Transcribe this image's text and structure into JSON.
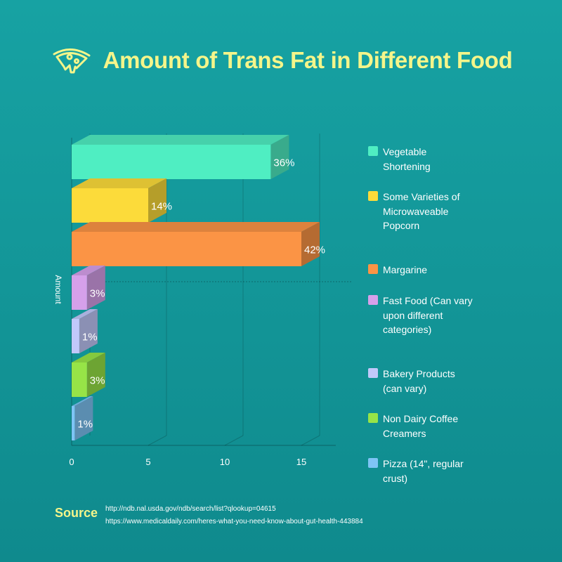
{
  "title": "Amount of Trans Fat in Different Food",
  "colors": {
    "title": "#f4f58a",
    "background": "#129698"
  },
  "chart_data": {
    "type": "bar",
    "orientation": "horizontal",
    "three_d": true,
    "categories": [
      "Vegetable Shortening",
      "Some Varieties of Microwaveable Popcorn",
      "Margarine",
      "Fast Food (Can vary upon different categories)",
      "Bakery Products (can vary)",
      "Non Dairy Coffee Creamers",
      "Pizza (14\", regular crust)"
    ],
    "values": [
      13,
      5,
      15,
      1,
      0.5,
      1,
      0.2
    ],
    "data_labels": [
      "36%",
      "14%",
      "42%",
      "3%",
      "1%",
      "3%",
      "1%"
    ],
    "colors": [
      "#4feec2",
      "#fcdb3a",
      "#fb9445",
      "#d6a0ea",
      "#c1c8fa",
      "#97e447",
      "#7ec4f5"
    ],
    "xlim": [
      0,
      15
    ],
    "xticks": [
      "0",
      "5",
      "10",
      "15"
    ],
    "ylabel": "Amount",
    "legend": "right",
    "grid": true
  },
  "legend_items": [
    {
      "label": "Vegetable Shortening",
      "color": "#4feec2"
    },
    {
      "label": "Some Varieties of Microwaveable Popcorn",
      "color": "#fcdb3a"
    },
    {
      "label": "Margarine",
      "color": "#fb9445"
    },
    {
      "label": "Fast Food (Can vary upon different categories)",
      "color": "#d6a0ea"
    },
    {
      "label": "Bakery Products (can vary)",
      "color": "#c1c8fa"
    },
    {
      "label": "Non Dairy Coffee Creamers",
      "color": "#97e447"
    },
    {
      "label": "Pizza (14\", regular crust)",
      "color": "#7ec4f5"
    }
  ],
  "source": {
    "label": "Source",
    "lines": [
      "http://ndb.nal.usda.gov/ndb/search/list?qlookup=04615",
      "https://www.medicaldaily.com/heres-what-you-need-know-about-gut-health-443884"
    ]
  },
  "icons": {
    "title_icon": "pizza-slice-icon"
  }
}
